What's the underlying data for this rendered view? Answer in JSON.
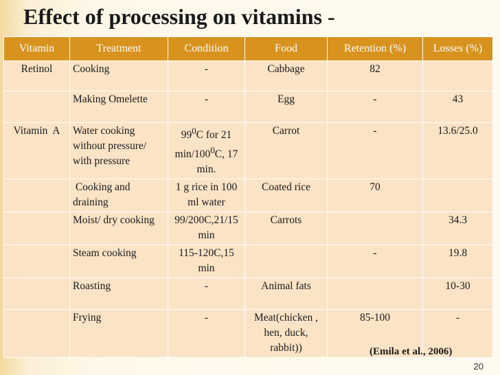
{
  "title": "Effect of processing on vitamins -",
  "table": {
    "headers": [
      "Vitamin",
      "Treatment",
      "Condition",
      "Food",
      "Retention (%)",
      "Losses (%)"
    ],
    "rows": [
      {
        "vitamin": "Retinol",
        "treatment": "Cooking",
        "condition": "-",
        "food": "Cabbage",
        "retention": "82",
        "losses": ""
      },
      {
        "vitamin": "",
        "treatment": "Making Omelette",
        "condition": "-",
        "food": "Egg",
        "retention": "-",
        "losses": "43"
      },
      {
        "vitamin": "Vitamin  A",
        "treatment": "Water cooking without pressure/ with pressure",
        "condition_html": "99<sup>0</sup>C for 21 min/100<sup>0</sup>C, 17 min.",
        "food": "Carrot",
        "retention": "-",
        "losses": "13.6/25.0"
      },
      {
        "vitamin": "",
        "treatment": " Cooking and draining",
        "condition": "1 g rice in 100 ml water",
        "food": "Coated rice",
        "retention": "70",
        "losses": ""
      },
      {
        "vitamin": "",
        "treatment": "Moist/ dry cooking",
        "condition": "99/200C,21/15 min",
        "food": "Carrots",
        "retention": "",
        "losses": "34.3"
      },
      {
        "vitamin": "",
        "treatment": "Steam cooking",
        "condition": "115-120C,15 min",
        "food": "",
        "retention": "-",
        "losses": "19.8"
      },
      {
        "vitamin": "",
        "treatment": "Roasting",
        "condition": "-",
        "food": "Animal fats",
        "retention": "",
        "losses": "10-30"
      },
      {
        "vitamin": "",
        "treatment": "Frying",
        "condition": "-",
        "food": "Meat(chicken , hen, duck, rabbit))",
        "retention": "85-100",
        "losses": "-"
      }
    ]
  },
  "citation": "(Emila et al., 2006)",
  "page_number": "20"
}
